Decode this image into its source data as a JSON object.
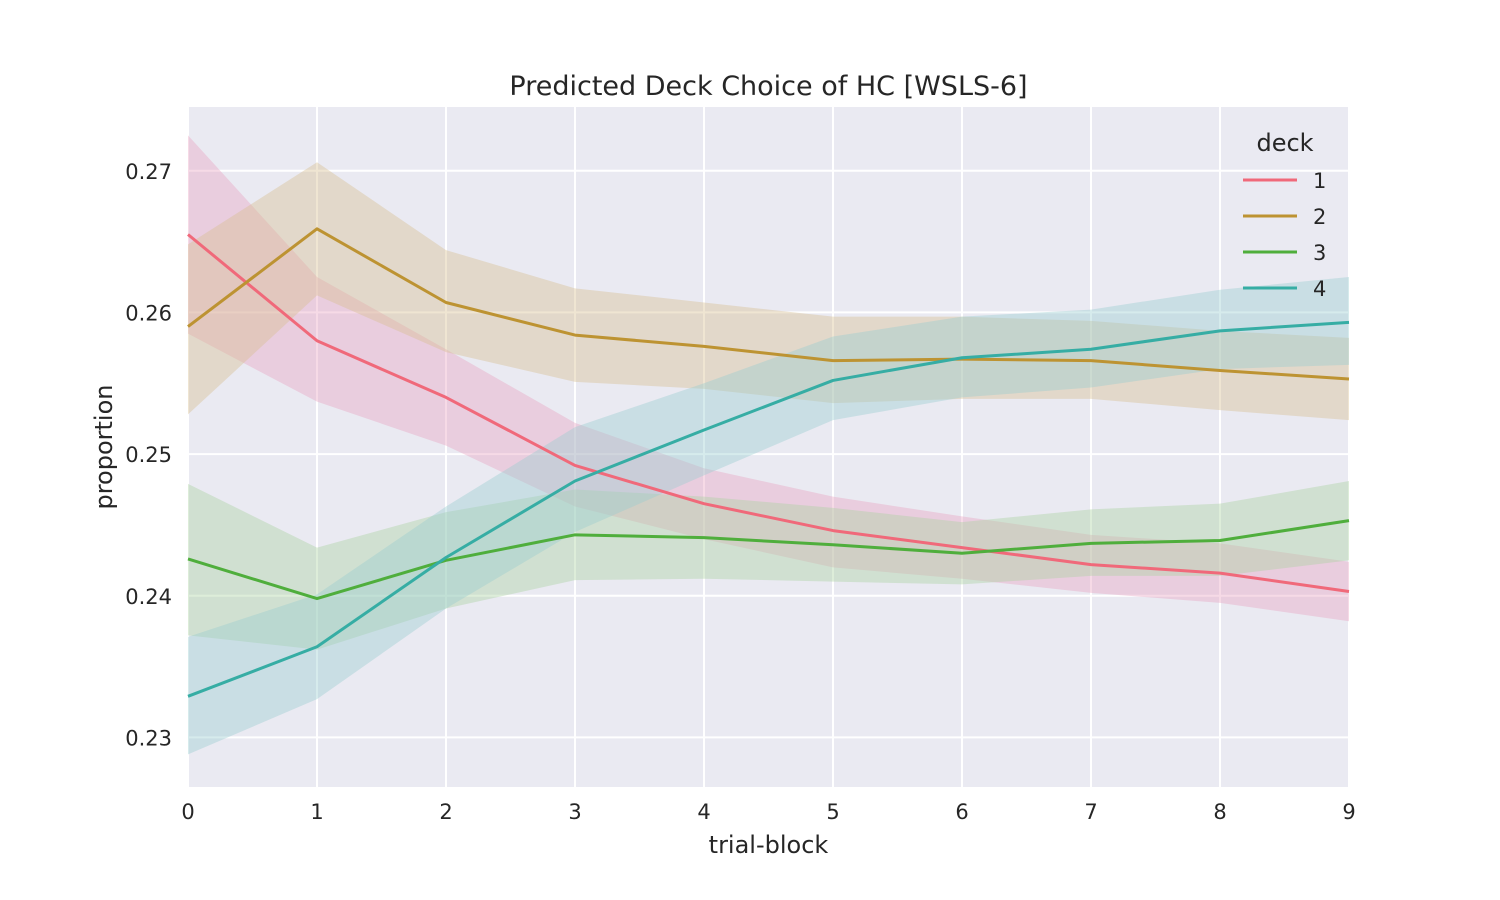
{
  "chart_data": {
    "type": "line",
    "title": "Predicted Deck Choice of HC [WSLS-6]",
    "xlabel": "trial-block",
    "ylabel": "proportion",
    "x": [
      0,
      1,
      2,
      3,
      4,
      5,
      6,
      7,
      8,
      9
    ],
    "xticks": [
      "0",
      "1",
      "2",
      "3",
      "4",
      "5",
      "6",
      "7",
      "8",
      "9"
    ],
    "yticks": [
      "0.23",
      "0.24",
      "0.25",
      "0.26",
      "0.27"
    ],
    "xlim": [
      0,
      9
    ],
    "ylim": [
      0.2265,
      0.2745
    ],
    "grid": true,
    "legend": {
      "title": "deck",
      "position": "top-right"
    },
    "series": [
      {
        "name": "1",
        "color": "#f0697a",
        "band_color": "#e8a3c0",
        "values": [
          0.2655,
          0.258,
          0.254,
          0.2492,
          0.2465,
          0.2446,
          0.2434,
          0.2422,
          0.2416,
          0.2403
        ],
        "lower": [
          0.2585,
          0.2537,
          0.2506,
          0.2463,
          0.244,
          0.242,
          0.2412,
          0.2402,
          0.2395,
          0.2382
        ],
        "upper": [
          0.2725,
          0.2625,
          0.2574,
          0.2522,
          0.249,
          0.247,
          0.2456,
          0.2443,
          0.2437,
          0.2424
        ]
      },
      {
        "name": "2",
        "color": "#bd9332",
        "band_color": "#d6bf8e",
        "values": [
          0.259,
          0.2659,
          0.2607,
          0.2584,
          0.2576,
          0.2566,
          0.2567,
          0.2566,
          0.2559,
          0.2553
        ],
        "lower": [
          0.2528,
          0.2612,
          0.2572,
          0.2551,
          0.2546,
          0.2536,
          0.2539,
          0.2539,
          0.2531,
          0.2524
        ],
        "upper": [
          0.2648,
          0.2706,
          0.2644,
          0.2617,
          0.2607,
          0.2597,
          0.2597,
          0.2594,
          0.2587,
          0.2582
        ]
      },
      {
        "name": "3",
        "color": "#4fae3c",
        "band_color": "#a9d2a0",
        "values": [
          0.2426,
          0.2398,
          0.2425,
          0.2443,
          0.2441,
          0.2436,
          0.243,
          0.2437,
          0.2439,
          0.2453
        ],
        "lower": [
          0.2372,
          0.2362,
          0.2391,
          0.2411,
          0.2412,
          0.241,
          0.2408,
          0.2414,
          0.2414,
          0.2425
        ],
        "upper": [
          0.2479,
          0.2434,
          0.2459,
          0.2475,
          0.247,
          0.2462,
          0.2452,
          0.2461,
          0.2465,
          0.2481
        ]
      },
      {
        "name": "4",
        "color": "#36ada4",
        "band_color": "#98ccd0",
        "values": [
          0.2329,
          0.2364,
          0.2427,
          0.2481,
          0.2517,
          0.2552,
          0.2568,
          0.2574,
          0.2587,
          0.2593
        ],
        "lower": [
          0.2288,
          0.2327,
          0.2391,
          0.2445,
          0.2485,
          0.2524,
          0.254,
          0.2547,
          0.256,
          0.2563
        ],
        "upper": [
          0.2371,
          0.2401,
          0.2463,
          0.2519,
          0.255,
          0.2583,
          0.2597,
          0.2602,
          0.2616,
          0.2625
        ]
      }
    ]
  }
}
